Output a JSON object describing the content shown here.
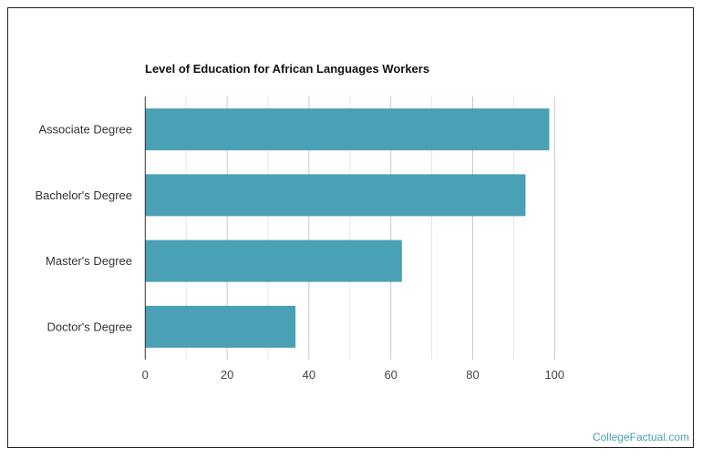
{
  "chart_data": {
    "type": "bar",
    "orientation": "horizontal",
    "title": "Level of Education for African Languages Workers",
    "categories": [
      "Associate Degree",
      "Bachelor's Degree",
      "Master's Degree",
      "Doctor's Degree"
    ],
    "values": [
      98.7,
      92.9,
      62.7,
      36.7
    ],
    "xlim": [
      0,
      100
    ],
    "xticks": [
      0,
      20,
      40,
      60,
      80,
      100
    ],
    "xlabel": "",
    "ylabel": "",
    "grid": true,
    "bar_color": "#4aa0b4"
  },
  "credit": "CollegeFactual.com"
}
